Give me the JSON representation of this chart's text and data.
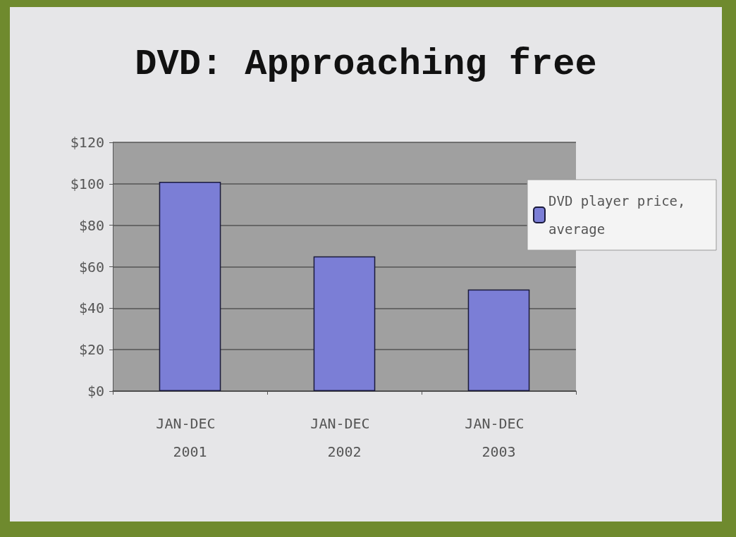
{
  "chart_data": {
    "type": "bar",
    "title": "DVD: Approaching free",
    "categories": [
      "JAN-DEC 2001",
      "JAN-DEC 2002",
      "JAN-DEC 2003"
    ],
    "series": [
      {
        "name": "DVD player price, average",
        "color": "#7b7ed6",
        "values": [
          101,
          65,
          49
        ]
      }
    ],
    "ylim": [
      0,
      120
    ],
    "yticks": [
      {
        "value": 0,
        "label": "$0"
      },
      {
        "value": 20,
        "label": "$20"
      },
      {
        "value": 40,
        "label": "$40"
      },
      {
        "value": 60,
        "label": "$60"
      },
      {
        "value": 80,
        "label": "$80"
      },
      {
        "value": 100,
        "label": "$100"
      },
      {
        "value": 120,
        "label": "$120"
      }
    ],
    "grid": "y",
    "legend": "right"
  }
}
